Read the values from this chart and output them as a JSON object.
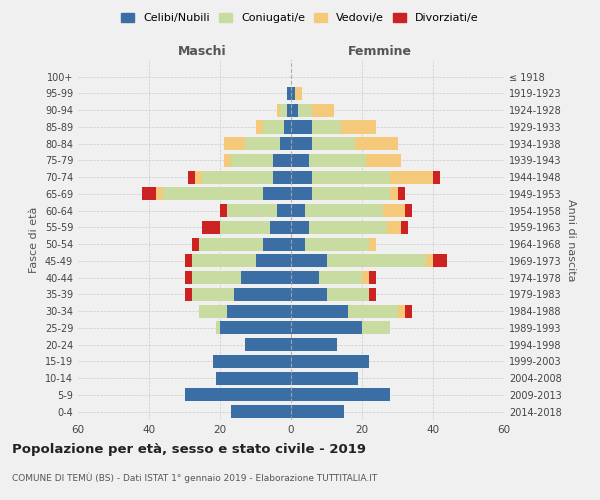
{
  "age_groups": [
    "0-4",
    "5-9",
    "10-14",
    "15-19",
    "20-24",
    "25-29",
    "30-34",
    "35-39",
    "40-44",
    "45-49",
    "50-54",
    "55-59",
    "60-64",
    "65-69",
    "70-74",
    "75-79",
    "80-84",
    "85-89",
    "90-94",
    "95-99",
    "100+"
  ],
  "birth_years": [
    "2014-2018",
    "2009-2013",
    "2004-2008",
    "1999-2003",
    "1994-1998",
    "1989-1993",
    "1984-1988",
    "1979-1983",
    "1974-1978",
    "1969-1973",
    "1964-1968",
    "1959-1963",
    "1954-1958",
    "1949-1953",
    "1944-1948",
    "1939-1943",
    "1934-1938",
    "1929-1933",
    "1924-1928",
    "1919-1923",
    "≤ 1918"
  ],
  "male_celibi": [
    17,
    30,
    21,
    22,
    13,
    20,
    18,
    16,
    14,
    10,
    8,
    6,
    4,
    8,
    5,
    5,
    3,
    2,
    1,
    1,
    0
  ],
  "male_coniugati": [
    0,
    0,
    0,
    0,
    0,
    1,
    8,
    12,
    14,
    18,
    18,
    14,
    14,
    28,
    20,
    12,
    10,
    6,
    2,
    0,
    0
  ],
  "male_vedovi": [
    0,
    0,
    0,
    0,
    0,
    0,
    0,
    0,
    0,
    0,
    0,
    0,
    0,
    2,
    2,
    2,
    6,
    2,
    1,
    0,
    0
  ],
  "male_divorziati": [
    0,
    0,
    0,
    0,
    0,
    0,
    0,
    2,
    2,
    2,
    2,
    5,
    2,
    4,
    2,
    0,
    0,
    0,
    0,
    0,
    0
  ],
  "female_celibi": [
    15,
    28,
    19,
    22,
    13,
    20,
    16,
    10,
    8,
    10,
    4,
    5,
    4,
    6,
    6,
    5,
    6,
    6,
    2,
    1,
    0
  ],
  "female_coniugati": [
    0,
    0,
    0,
    0,
    0,
    8,
    14,
    12,
    12,
    28,
    18,
    22,
    22,
    22,
    22,
    16,
    12,
    8,
    4,
    0,
    0
  ],
  "female_vedovi": [
    0,
    0,
    0,
    0,
    0,
    0,
    2,
    0,
    2,
    2,
    2,
    4,
    6,
    2,
    12,
    10,
    12,
    10,
    6,
    2,
    0
  ],
  "female_divorziati": [
    0,
    0,
    0,
    0,
    0,
    0,
    2,
    2,
    2,
    4,
    0,
    2,
    2,
    2,
    2,
    0,
    0,
    0,
    0,
    0,
    0
  ],
  "colors": {
    "celibi": "#3a6ea5",
    "coniugati": "#c8dba0",
    "vedovi": "#f5c97a",
    "divorziati": "#cc2222"
  },
  "title": "Popolazione per età, sesso e stato civile - 2019",
  "subtitle": "COMUNE DI TEMÙ (BS) - Dati ISTAT 1° gennaio 2019 - Elaborazione TUTTITALIA.IT",
  "xlabel_left": "Maschi",
  "xlabel_right": "Femmine",
  "ylabel_left": "Fasce di età",
  "ylabel_right": "Anni di nascita",
  "xlim": 60,
  "background_color": "#f0f0f0",
  "legend_labels": [
    "Celibi/Nubili",
    "Coniugati/e",
    "Vedovi/e",
    "Divorziati/e"
  ]
}
